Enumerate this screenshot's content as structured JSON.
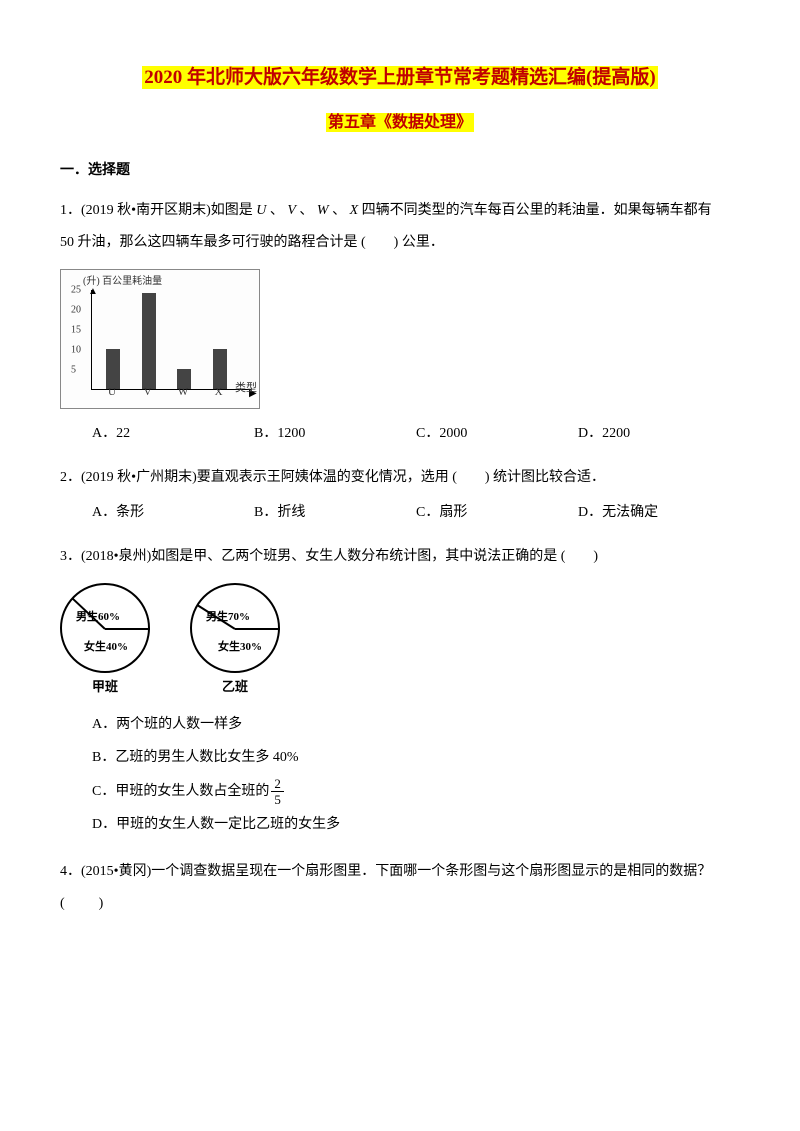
{
  "title_main": "2020 年北师大版六年级数学上册章节常考题精选汇编(提高版)",
  "title_sub": "第五章《数据处理》",
  "section1": "一．选择题",
  "q1": {
    "text_a": "1．(2019 秋•南开区期末)如图是",
    "vars": [
      "U",
      "V",
      "W",
      "X"
    ],
    "text_b": "四辆不同类型的汽车每百公里的耗油量．如果每辆车都有",
    "text_c": "50 升油，那么这四辆车最多可行驶的路程合计是 (　　) 公里．",
    "chart": {
      "type": "bar",
      "ylabel_top": "(升) 百公里耗油量",
      "xaxis_label": "类型",
      "categories": [
        "U",
        "V",
        "W",
        "X"
      ],
      "values": [
        10,
        24,
        5,
        10
      ],
      "yticks": [
        5,
        10,
        15,
        20,
        25
      ],
      "ymax": 25,
      "bar_color": "#444444",
      "axis_color": "#000000",
      "bg": "#fdfdfd"
    },
    "opts": {
      "A": "22",
      "B": "1200",
      "C": "2000",
      "D": "2200"
    }
  },
  "q2": {
    "text": "2．(2019 秋•广州期末)要直观表示王阿姨体温的变化情况，选用 (　　) 统计图比较合适．",
    "opts": {
      "A": "条形",
      "B": "折线",
      "C": "扇形",
      "D": "无法确定"
    }
  },
  "q3": {
    "text": "3．(2018•泉州)如图是甲、乙两个班男、女生人数分布统计图，其中说法正确的是 (　　)",
    "pies": {
      "jia": {
        "label": "甲班",
        "boy": "男生60%",
        "girl": "女生40%",
        "boy_deg": 216
      },
      "yi": {
        "label": "乙班",
        "boy": "男生70%",
        "girl": "女生30%",
        "boy_deg": 252
      }
    },
    "opts": {
      "A": "两个班的人数一样多",
      "B": "乙班的男生人数比女生多 40%",
      "C_pre": "甲班的女生人数占全班的",
      "C_num": "2",
      "C_den": "5",
      "D": "甲班的女生人数一定比乙班的女生多"
    }
  },
  "q4": {
    "text": "4．(2015•黄冈)一个调查数据呈现在一个扇形图里．下面哪一个条形图与这个扇形图显示的是相同的数据？",
    "blank": "(　　)"
  }
}
